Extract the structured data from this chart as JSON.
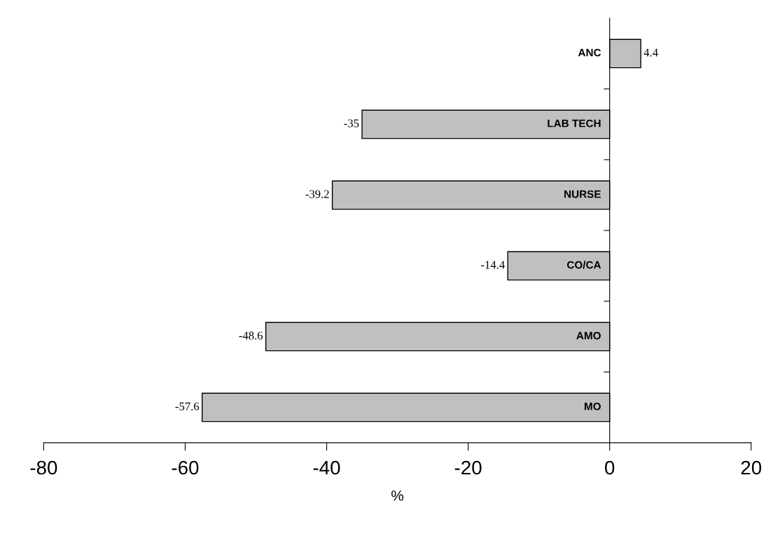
{
  "chart_data": {
    "type": "bar",
    "orientation": "horizontal",
    "categories": [
      "ANC",
      "LAB TECH",
      "NURSE",
      "CO/CA",
      "AMO",
      "MO"
    ],
    "values": [
      4.4,
      -35,
      -39.2,
      -14.4,
      -48.6,
      -57.6
    ],
    "color": "#c0c0c0",
    "xlim": [
      -80,
      20
    ],
    "xticks": [
      -80,
      -60,
      -40,
      -20,
      0,
      20
    ],
    "xlabel": "%",
    "data_labels": true,
    "grid": false,
    "legend": false
  }
}
